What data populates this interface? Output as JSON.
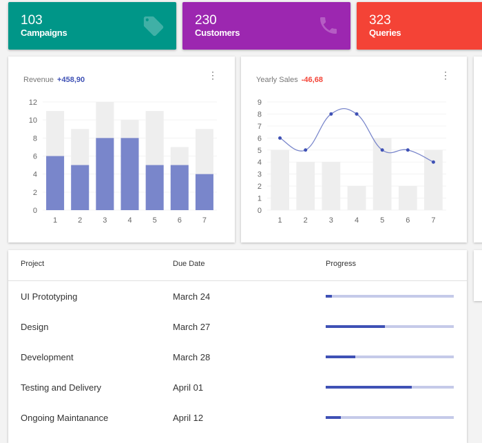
{
  "stats": [
    {
      "value": "103",
      "label": "Campaigns",
      "color": "#009688",
      "icon": "tag-icon"
    },
    {
      "value": "230",
      "label": "Customers",
      "color": "#9c27b0",
      "icon": "phone-icon"
    },
    {
      "value": "323",
      "label": "Queries",
      "color": "#f44336",
      "icon": ""
    }
  ],
  "revenue": {
    "title": "Revenue",
    "delta": "+458,90",
    "delta_color": "#3f51b5"
  },
  "sales": {
    "title": "Yearly Sales",
    "delta": "-46,68",
    "delta_color": "#f44336"
  },
  "chart_data": [
    {
      "type": "bar",
      "title": "Revenue",
      "categories": [
        "1",
        "2",
        "3",
        "4",
        "5",
        "6",
        "7"
      ],
      "series": [
        {
          "name": "total",
          "values": [
            11,
            9,
            12,
            10,
            11,
            7,
            9
          ],
          "color": "#eeeeee"
        },
        {
          "name": "revenue",
          "values": [
            6,
            5,
            8,
            8,
            5,
            5,
            4
          ],
          "color": "#7986cb"
        }
      ],
      "ylim": [
        0,
        12
      ],
      "yticks": [
        0,
        2,
        4,
        6,
        8,
        10,
        12
      ]
    },
    {
      "type": "bar+line",
      "title": "Yearly Sales",
      "categories": [
        "1",
        "2",
        "3",
        "4",
        "5",
        "6",
        "7"
      ],
      "series": [
        {
          "name": "bars",
          "values": [
            5,
            4,
            4,
            2,
            6,
            2,
            5
          ],
          "color": "#eeeeee"
        },
        {
          "name": "line",
          "values": [
            6,
            5,
            8,
            8,
            5,
            5,
            4
          ],
          "color": "#3f51b5"
        }
      ],
      "ylim": [
        0,
        9
      ],
      "yticks": [
        0,
        1,
        2,
        3,
        4,
        5,
        6,
        7,
        8,
        9
      ]
    }
  ],
  "table": {
    "headers": [
      "Project",
      "Due Date",
      "Progress"
    ],
    "rows": [
      {
        "project": "UI Prototyping",
        "due": "March 24",
        "progress": 5
      },
      {
        "project": "Design",
        "due": "March 27",
        "progress": 46
      },
      {
        "project": "Development",
        "due": "March 28",
        "progress": 23
      },
      {
        "project": "Testing and Delivery",
        "due": "April 01",
        "progress": 67
      },
      {
        "project": "Ongoing Maintanance",
        "due": "April 12",
        "progress": 12
      }
    ]
  }
}
